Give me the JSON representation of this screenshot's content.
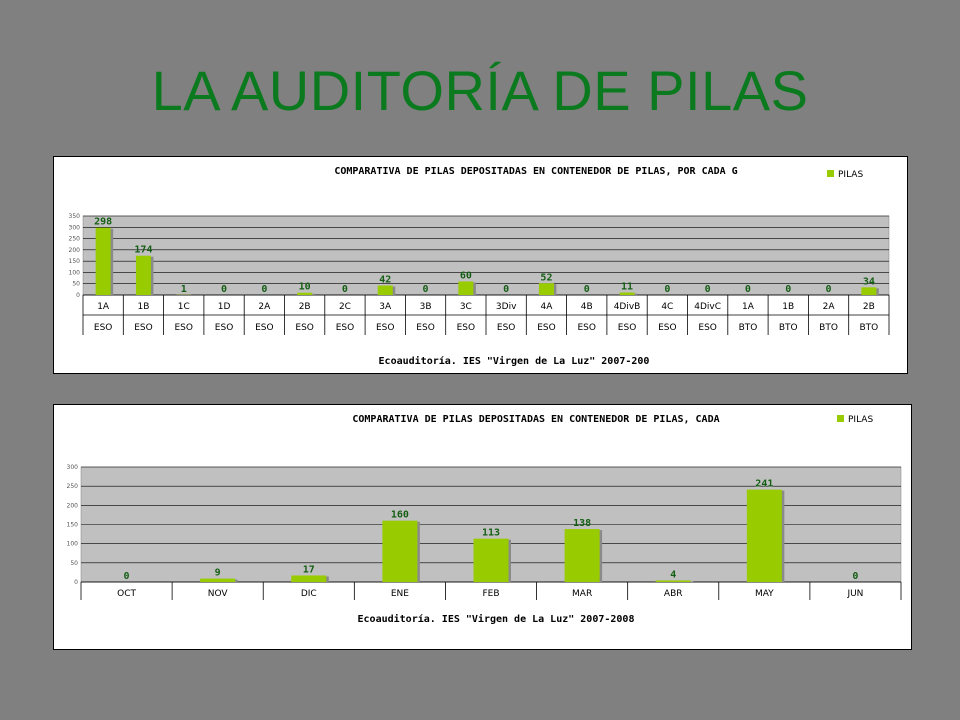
{
  "slide": {
    "title": "LA AUDITORÍA DE PILAS"
  },
  "colors": {
    "title": "#0b7a1f",
    "bar": "#99cc00",
    "bar_shadow": "#8a8a8a",
    "plot_bg": "#c0c0c0",
    "data_label": "#145e14"
  },
  "chart_data": [
    {
      "type": "bar",
      "title": "COMPARATIVA DE PILAS DEPOSITADAS EN CONTENEDOR DE PILAS, POR CADA G",
      "footer": "Ecoauditoría. IES \"Virgen de La Luz\" 2007-200",
      "legend": [
        "PILAS"
      ],
      "legend_position": "top-right",
      "categories": [
        "1A",
        "1B",
        "1C",
        "1D",
        "2A",
        "2B",
        "2C",
        "3A",
        "3B",
        "3C",
        "3Div",
        "4A",
        "4B",
        "4DivB",
        "4C",
        "4DivC",
        "1A",
        "1B",
        "2A",
        "2B"
      ],
      "categories_level2": [
        "ESO",
        "ESO",
        "ESO",
        "ESO",
        "ESO",
        "ESO",
        "ESO",
        "ESO",
        "ESO",
        "ESO",
        "ESO",
        "ESO",
        "ESO",
        "ESO",
        "ESO",
        "ESO",
        "BTO",
        "BTO",
        "BTO",
        "BTO"
      ],
      "series": [
        {
          "name": "PILAS",
          "values": [
            298,
            174,
            1,
            0,
            0,
            10,
            0,
            42,
            0,
            60,
            0,
            52,
            0,
            11,
            0,
            0,
            0,
            0,
            0,
            34
          ]
        }
      ],
      "ylim": [
        0,
        350
      ],
      "yticks": [
        0,
        50,
        100,
        150,
        200,
        250,
        300,
        350
      ],
      "grid": true
    },
    {
      "type": "bar",
      "title": "COMPARATIVA DE PILAS DEPOSITADAS  EN CONTENEDOR DE PILAS, CADA",
      "footer": "Ecoauditoría. IES \"Virgen de La Luz\" 2007-2008",
      "legend": [
        "PILAS"
      ],
      "legend_position": "top-right",
      "categories": [
        "OCT",
        "NOV",
        "DIC",
        "ENE",
        "FEB",
        "MAR",
        "ABR",
        "MAY",
        "JUN"
      ],
      "series": [
        {
          "name": "PILAS",
          "values": [
            0,
            9,
            17,
            160,
            113,
            138,
            4,
            241,
            0
          ]
        }
      ],
      "ylim": [
        0,
        300
      ],
      "yticks": [
        0,
        50,
        100,
        150,
        200,
        250,
        300
      ],
      "grid": true
    }
  ]
}
